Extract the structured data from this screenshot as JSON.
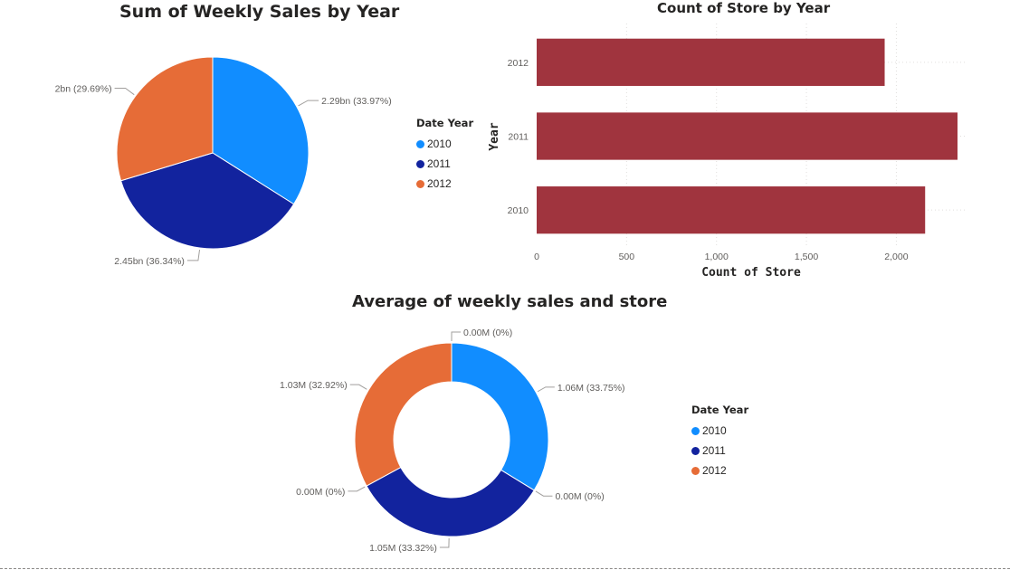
{
  "colors": {
    "y2010": "#118dff",
    "y2011": "#12239e",
    "y2012": "#e66c37",
    "bar": "#a0343e"
  },
  "chart_data": [
    {
      "type": "pie",
      "title": "Sum of Weekly Sales by Year",
      "legend_title": "Date Year",
      "categories": [
        "2010",
        "2011",
        "2012"
      ],
      "values": [
        2.29,
        2.45,
        2.0
      ],
      "unit": "bn",
      "data_labels": [
        "2.29bn (33.97%)",
        "2.45bn (36.34%)",
        "2bn (29.69%)"
      ],
      "percentages": [
        33.97,
        36.34,
        29.69
      ],
      "legend_position": "right"
    },
    {
      "type": "bar",
      "orientation": "horizontal",
      "title": "Count of Store by Year",
      "xlabel": "Count of Store",
      "ylabel": "Year",
      "categories": [
        "2012",
        "2011",
        "2010"
      ],
      "values": [
        1935,
        2340,
        2160
      ],
      "xlim": [
        0,
        2340
      ],
      "xticks": [
        0,
        500,
        1000,
        1500,
        2000
      ],
      "xtick_labels": [
        "0",
        "500",
        "1,000",
        "1,500",
        "2,000"
      ],
      "grid": true
    },
    {
      "type": "donut",
      "title": "Average of weekly sales and store",
      "legend_title": "Date Year",
      "legend_position": "right",
      "categories": [
        "2010",
        "2011",
        "2012"
      ],
      "series": [
        {
          "values": [
            1.06,
            1.05,
            1.03
          ],
          "unit": "M",
          "percentages": [
            33.75,
            33.32,
            32.92
          ],
          "data_labels": [
            "1.06M (33.75%)",
            "1.05M (33.32%)",
            "1.03M (32.92%)"
          ]
        },
        {
          "values": [
            0.0,
            0.0,
            0.0
          ],
          "unit": "M",
          "percentages": [
            0,
            0,
            0
          ],
          "data_labels": [
            "0.00M (0%)",
            "0.00M (0%)",
            "0.00M (0%)"
          ]
        }
      ]
    }
  ]
}
